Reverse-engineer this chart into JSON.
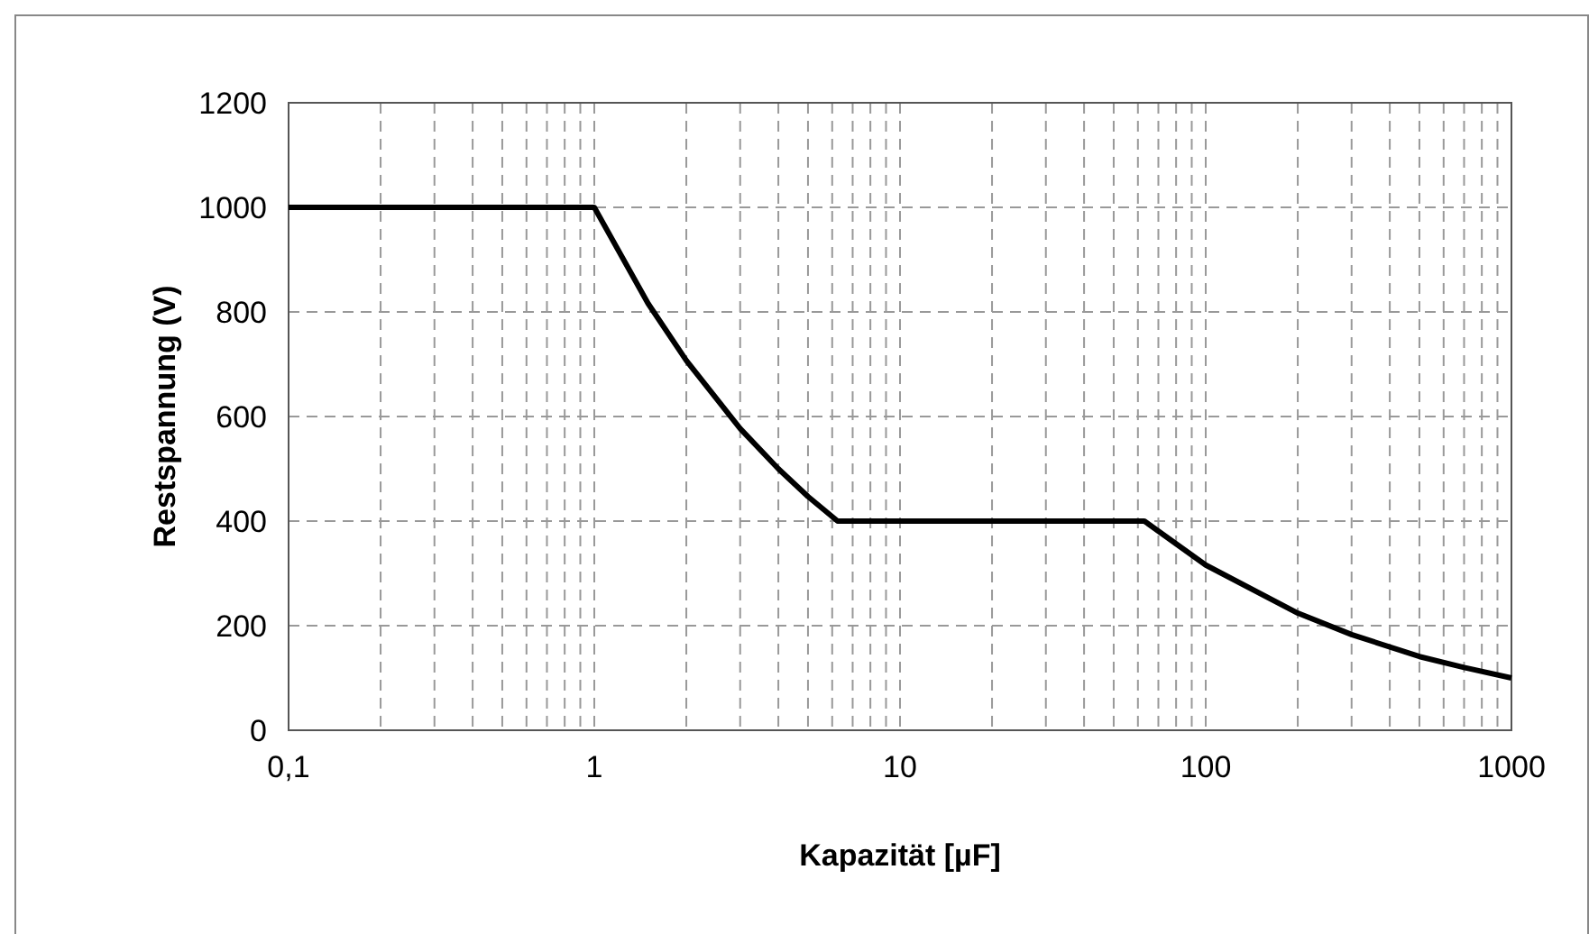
{
  "chart_data": {
    "type": "line",
    "xlabel": "Kapazität [µF]",
    "ylabel": "Restspannung (V)",
    "x": [
      0.1,
      0.95,
      1,
      1.5,
      2,
      3,
      4,
      5,
      6.25,
      63,
      100,
      200,
      300,
      500,
      700,
      1000
    ],
    "series": [
      {
        "color": "#000000",
        "values": [
          1000,
          1000,
          1000,
          816,
          707,
          577,
          500,
          447,
          400,
          400,
          316,
          224,
          183,
          141,
          120,
          100
        ]
      }
    ],
    "log": "x",
    "xlim": [
      0.1,
      1000
    ],
    "ylim": [
      0,
      1200
    ],
    "xticks": [
      {
        "value": 0.1,
        "label": "0,1"
      },
      {
        "value": 0.2,
        "label": null
      },
      {
        "value": 0.3,
        "label": null
      },
      {
        "value": 0.4,
        "label": null
      },
      {
        "value": 0.5,
        "label": null
      },
      {
        "value": 0.6,
        "label": null
      },
      {
        "value": 0.7,
        "label": null
      },
      {
        "value": 0.8,
        "label": null
      },
      {
        "value": 0.9,
        "label": null
      },
      1,
      {
        "value": 2,
        "label": null
      },
      {
        "value": 3,
        "label": null
      },
      {
        "value": 4,
        "label": null
      },
      {
        "value": 5,
        "label": null
      },
      {
        "value": 6,
        "label": null
      },
      {
        "value": 7,
        "label": null
      },
      {
        "value": 8,
        "label": null
      },
      {
        "value": 9,
        "label": null
      },
      10,
      {
        "value": 20,
        "label": null
      },
      {
        "value": 30,
        "label": null
      },
      {
        "value": 40,
        "label": null
      },
      {
        "value": 50,
        "label": null
      },
      {
        "value": 60,
        "label": null
      },
      {
        "value": 70,
        "label": null
      },
      {
        "value": 80,
        "label": null
      },
      {
        "value": 90,
        "label": null
      },
      100,
      {
        "value": 200,
        "label": null
      },
      {
        "value": 300,
        "label": null
      },
      {
        "value": 400,
        "label": null
      },
      {
        "value": 500,
        "label": null
      },
      {
        "value": 600,
        "label": null
      },
      {
        "value": 700,
        "label": null
      },
      {
        "value": 800,
        "label": null
      },
      {
        "value": 900,
        "label": null
      },
      1000
    ],
    "yticks": [
      0,
      200,
      400,
      600,
      800,
      1000,
      1200
    ],
    "grid": true,
    "marker": "none",
    "line_style": "solid"
  }
}
